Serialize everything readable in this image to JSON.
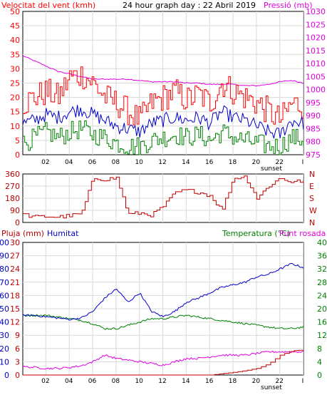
{
  "colors": {
    "wind": "#ff0000",
    "wind_avg": "#0000c8",
    "wind_low": "#008000",
    "pressure": "#e000e0",
    "direction": "#c00000",
    "rain": "#c00000",
    "humidity": "#0000c8",
    "temperature": "#008000",
    "dewpoint": "#e000e0",
    "grid": "#d9d9d9",
    "axis": "#000000"
  },
  "header": {
    "wind_label": "Velocitat del vent (kmh)",
    "title": "24 hour graph day : 22 Abril 2019",
    "pressure_label": "Pressió (mb)"
  },
  "lower_header": {
    "rain_label": "Pluja (mm)",
    "humidity_label": "Humitat",
    "temp_label": "Temperatura (°C)",
    "dew_label": "Punt rosada"
  },
  "sunset_label": "sunset",
  "chart_data": [
    {
      "type": "line",
      "title": "24 hour graph day : 22 Abril 2019",
      "ylabel": "Velocitat del vent (kmh)",
      "y2label": "Pressió (mb)",
      "ylim": [
        0,
        50
      ],
      "y2lim": [
        975,
        1030
      ],
      "grid": true,
      "x_ticks": [
        "02",
        "04",
        "06",
        "08",
        "10",
        "12",
        "14",
        "16",
        "18",
        "20",
        "22",
        "I"
      ],
      "y_ticks": [
        "0",
        "5",
        "10",
        "15",
        "20",
        "25",
        "30",
        "35",
        "40",
        "45",
        "50"
      ],
      "y2_ticks": [
        "975",
        "980",
        "985",
        "990",
        "995",
        "1000",
        "1005",
        "1010",
        "1015",
        "1020",
        "1025",
        "1030"
      ],
      "x_hours": [
        0,
        1,
        2,
        3,
        4,
        5,
        6,
        7,
        8,
        9,
        10,
        11,
        12,
        13,
        14,
        15,
        16,
        17,
        18,
        19,
        20,
        21,
        22,
        23,
        24
      ],
      "series": [
        {
          "key": "wind_gust",
          "values": [
            18,
            20,
            22,
            20,
            27,
            28,
            25,
            20,
            18,
            15,
            12,
            18,
            20,
            22,
            19,
            21,
            18,
            25,
            22,
            20,
            18,
            15,
            12,
            18,
            17
          ]
        },
        {
          "key": "wind_avg",
          "values": [
            11,
            12,
            14,
            13,
            15,
            16,
            14,
            12,
            10,
            9,
            8,
            11,
            12,
            13,
            12,
            13,
            11,
            15,
            13,
            12,
            10,
            8,
            7,
            12,
            11
          ]
        },
        {
          "key": "wind_low",
          "values": [
            4,
            6,
            8,
            6,
            8,
            9,
            7,
            6,
            4,
            3,
            3,
            5,
            6,
            7,
            6,
            7,
            5,
            8,
            6,
            5,
            4,
            3,
            3,
            6,
            5
          ]
        },
        {
          "key": "pressure",
          "values": [
            1013,
            1011,
            1009,
            1007,
            1006,
            1005,
            1004,
            1004,
            1004,
            1004,
            1003.5,
            1003,
            1003,
            1003,
            1002.5,
            1002.5,
            1002,
            1002,
            1002,
            1001.5,
            1001.5,
            1002,
            1003,
            1003.5,
            1002.5
          ]
        }
      ]
    },
    {
      "type": "line",
      "ylim": [
        0,
        360
      ],
      "y_ticks": [
        "0",
        "90",
        "180",
        "270",
        "360"
      ],
      "y2_ticks": [
        "N",
        "W",
        "S",
        "E",
        "N"
      ],
      "x_ticks": [
        "02",
        "04",
        "06",
        "08",
        "10",
        "12",
        "14",
        "16",
        "18",
        "20",
        "22",
        "I"
      ],
      "x_hours": [
        0,
        1,
        2,
        3,
        4,
        5,
        6,
        7,
        8,
        9,
        10,
        11,
        12,
        13,
        14,
        15,
        16,
        17,
        18,
        19,
        20,
        21,
        22,
        23,
        24
      ],
      "series": [
        {
          "key": "wind_direction",
          "values": [
            60,
            40,
            45,
            40,
            50,
            65,
            330,
            320,
            330,
            60,
            70,
            55,
            120,
            220,
            240,
            225,
            200,
            90,
            330,
            340,
            180,
            270,
            330,
            300,
            310
          ]
        }
      ]
    },
    {
      "type": "line",
      "ylabel": "Pluja (mm)",
      "y2label": "Temperatura (°C)",
      "rain_ylim": [
        0,
        30
      ],
      "humidity_ylim": [
        0,
        100
      ],
      "temp_ylim": [
        0,
        40
      ],
      "rain_ticks": [
        "0",
        "3",
        "6",
        "9",
        "12",
        "15",
        "18",
        "21",
        "24",
        "27",
        "30"
      ],
      "humidity_ticks": [
        "0",
        "10",
        "20",
        "30",
        "40",
        "50",
        "60",
        "70",
        "80",
        "90",
        "100"
      ],
      "temp_ticks": [
        "0",
        "4",
        "8",
        "12",
        "16",
        "20",
        "24",
        "28",
        "32",
        "36",
        "40"
      ],
      "x_ticks": [
        "02",
        "04",
        "06",
        "08",
        "10",
        "12",
        "14",
        "16",
        "18",
        "20",
        "22",
        "I"
      ],
      "x_hours": [
        0,
        1,
        2,
        3,
        4,
        5,
        6,
        7,
        8,
        9,
        10,
        11,
        12,
        13,
        14,
        15,
        16,
        17,
        18,
        19,
        20,
        21,
        22,
        23,
        24
      ],
      "series": [
        {
          "key": "humidity",
          "values": [
            45,
            45,
            44,
            43,
            42,
            43,
            48,
            58,
            65,
            55,
            62,
            48,
            44,
            48,
            55,
            58,
            62,
            66,
            68,
            70,
            74,
            76,
            80,
            84,
            81
          ]
        },
        {
          "key": "temperature",
          "values": [
            18,
            18,
            18,
            17.5,
            17,
            16.5,
            15.5,
            14,
            14,
            15,
            16,
            17,
            17,
            17.5,
            18,
            17.5,
            17,
            16.5,
            16,
            15.5,
            15,
            14.5,
            14,
            14,
            14.5
          ]
        },
        {
          "key": "dewpoint",
          "values": [
            2.5,
            2.3,
            2,
            2,
            2.3,
            2.8,
            4,
            6,
            5,
            4.5,
            4,
            3.5,
            3,
            4,
            5,
            5,
            5.5,
            6,
            6,
            6,
            6.5,
            7,
            7,
            7,
            7
          ]
        },
        {
          "key": "rain",
          "values": [
            0,
            0,
            0,
            0,
            0,
            0,
            0,
            0,
            0,
            0,
            0,
            0,
            0,
            0,
            0,
            0,
            0,
            0.3,
            0.6,
            1.0,
            1.5,
            2.5,
            4.5,
            5.5,
            5.7
          ]
        }
      ]
    }
  ]
}
